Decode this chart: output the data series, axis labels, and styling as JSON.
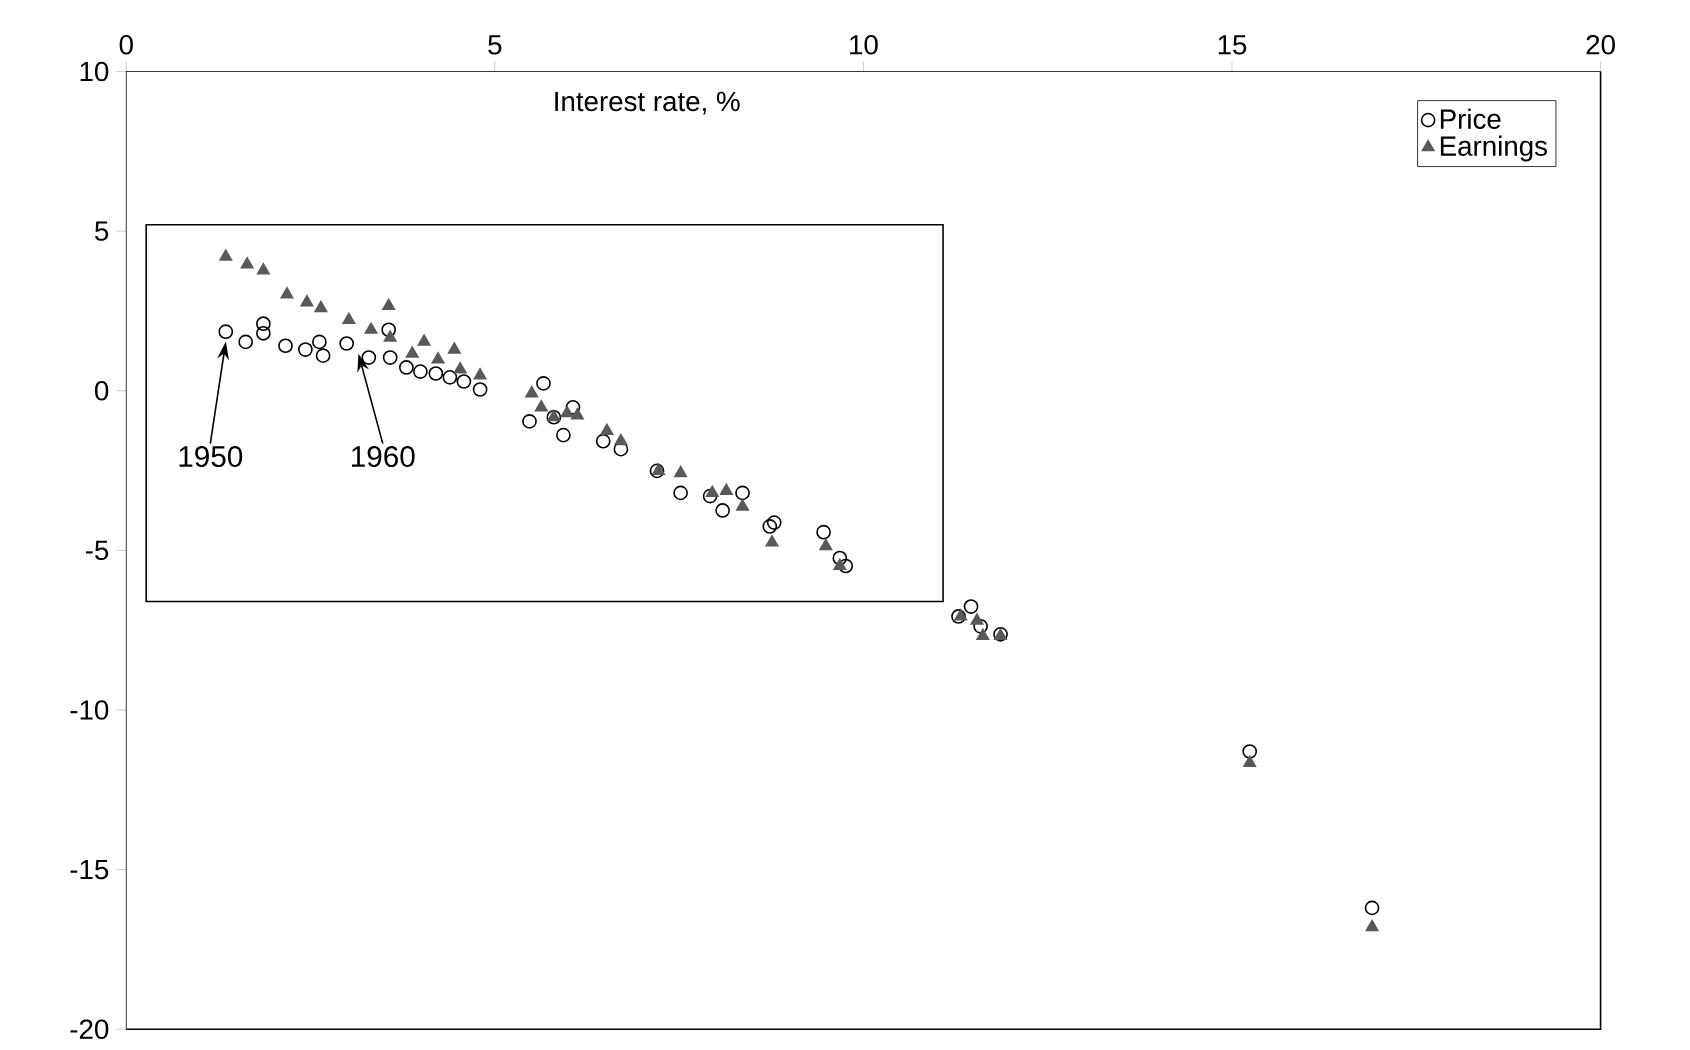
{
  "chart_data": {
    "type": "scatter",
    "xlabel": "Interest rate, %",
    "xlim": [
      0,
      20
    ],
    "xticks": [
      0,
      5,
      10,
      15,
      20
    ],
    "ylim": [
      -20,
      10
    ],
    "yticks": [
      -20,
      -15,
      -10,
      -5,
      0,
      5,
      10
    ],
    "legend": "top right",
    "grid": false,
    "series": [
      {
        "name": "Price",
        "color": "#000000",
        "marker": "circle",
        "x": [
          1.35,
          1.62,
          1.86,
          1.86,
          2.16,
          2.43,
          2.62,
          2.67,
          2.99,
          3.29,
          3.56,
          3.58,
          3.8,
          3.99,
          4.2,
          4.39,
          4.58,
          4.8,
          5.66,
          5.47,
          5.93,
          6.06,
          5.8,
          6.47,
          6.71,
          7.2,
          7.52,
          7.92,
          8.09,
          8.36,
          8.73,
          8.79,
          9.46,
          9.68,
          9.76,
          11.46,
          11.29,
          11.59,
          11.86,
          15.24,
          16.9
        ],
        "values": [
          1.85,
          1.53,
          2.1,
          1.8,
          1.41,
          1.29,
          1.53,
          1.1,
          1.48,
          1.04,
          1.91,
          1.04,
          0.73,
          0.6,
          0.54,
          0.42,
          0.29,
          0.04,
          0.23,
          -0.96,
          -1.39,
          -0.52,
          -0.83,
          -1.58,
          -1.83,
          -2.51,
          -3.2,
          -3.3,
          -3.75,
          -3.2,
          -4.25,
          -4.13,
          -4.43,
          -5.24,
          -5.49,
          -6.76,
          -7.07,
          -7.38,
          -7.63,
          -11.3,
          -16.2
        ]
      },
      {
        "name": "Earnings",
        "color": "#595959",
        "marker": "triangle",
        "x": [
          1.35,
          1.64,
          1.86,
          2.18,
          2.45,
          2.64,
          3.02,
          3.32,
          3.56,
          3.58,
          3.88,
          4.04,
          4.23,
          4.45,
          4.53,
          4.8,
          5.5,
          5.63,
          5.8,
          5.98,
          6.12,
          6.52,
          6.71,
          7.22,
          7.52,
          7.95,
          8.14,
          8.36,
          8.76,
          9.49,
          9.68,
          11.32,
          11.54,
          11.62,
          11.86,
          15.24,
          16.9
        ],
        "values": [
          4.2,
          3.96,
          3.77,
          3.02,
          2.77,
          2.59,
          2.22,
          1.91,
          2.66,
          1.66,
          1.16,
          1.54,
          0.98,
          1.29,
          0.67,
          0.48,
          -0.08,
          -0.52,
          -0.83,
          -0.7,
          -0.77,
          -1.26,
          -1.58,
          -2.51,
          -2.58,
          -3.2,
          -3.14,
          -3.63,
          -4.75,
          -4.87,
          -5.49,
          -7.07,
          -7.2,
          -7.68,
          -7.68,
          -11.66,
          -16.8
        ]
      }
    ],
    "annotations": [
      {
        "text": "1950",
        "x": 1.35,
        "y": 1.54
      },
      {
        "text": "1960",
        "x": 3.15,
        "y": 1.16
      }
    ]
  }
}
